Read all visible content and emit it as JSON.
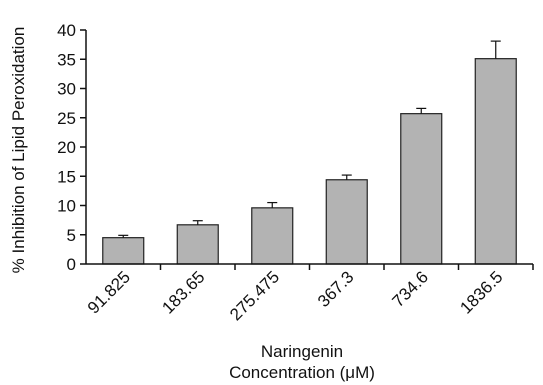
{
  "chart_data": {
    "type": "bar",
    "title": "",
    "xlabel_lines": [
      "Naringenin",
      "Concentration (μM)"
    ],
    "ylabel": "% Inhibition of Lipid Peroxidation",
    "categories": [
      "91.825",
      "183.65",
      "275.475",
      "367.3",
      "734.6",
      "1836.5"
    ],
    "values": [
      4.5,
      6.7,
      9.6,
      14.4,
      25.7,
      35.1
    ],
    "errors": [
      0.4,
      0.7,
      0.9,
      0.8,
      0.9,
      3.0
    ],
    "ylim": [
      0,
      40
    ],
    "yticks": [
      "0",
      "5",
      "10",
      "15",
      "20",
      "25",
      "30",
      "35",
      "40"
    ],
    "grid": false,
    "bar_color": "#b3b3b3",
    "bar_edge_color": "#222222"
  }
}
